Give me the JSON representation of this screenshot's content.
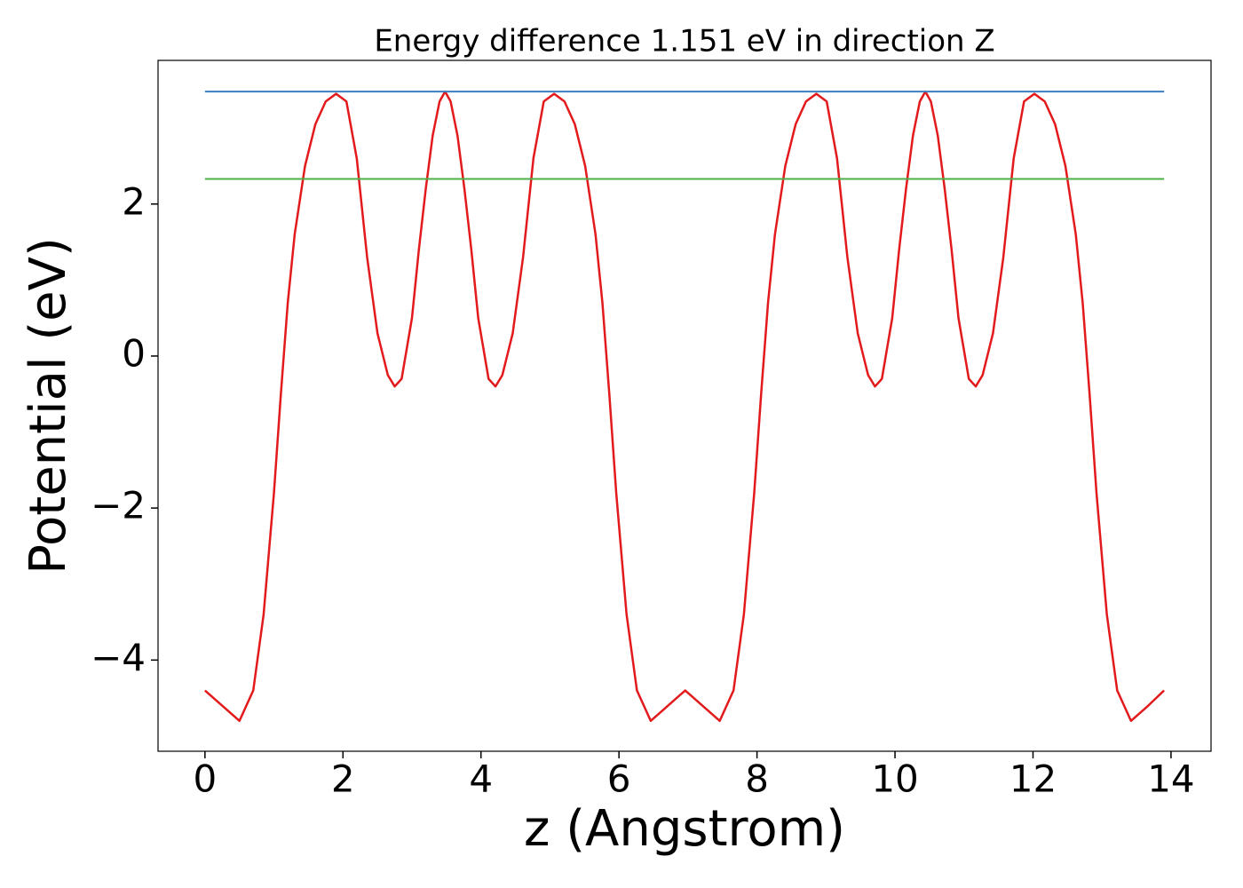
{
  "chart_data": {
    "type": "line",
    "title": "Energy difference 1.151 eV in direction Z",
    "xlabel": "z (Angstrom)",
    "ylabel": "Potential (eV)",
    "xlim": [
      -0.68,
      14.58
    ],
    "ylim": [
      -5.2,
      3.89
    ],
    "xticks": [
      0,
      2,
      4,
      6,
      8,
      10,
      12,
      14
    ],
    "yticks": [
      {
        "value": -4,
        "label": "−4"
      },
      {
        "value": -2,
        "label": "−2"
      },
      0,
      2
    ],
    "grid": false,
    "series": [
      {
        "color": "#e31a1c",
        "x": [
          0,
          0.25,
          0.5,
          0.7,
          0.85,
          1.0,
          1.1,
          1.2,
          1.3,
          1.45,
          1.6,
          1.75,
          1.9,
          2.05,
          2.2,
          2.35,
          2.5,
          2.65,
          2.75,
          2.85,
          3.0,
          3.1,
          3.2,
          3.3,
          3.4,
          3.48,
          3.56,
          3.66,
          3.76,
          3.86,
          3.96,
          4.11,
          4.21,
          4.31,
          4.46,
          4.61,
          4.76,
          4.91,
          5.06,
          5.21,
          5.36,
          5.51,
          5.66,
          5.76,
          5.86,
          5.96,
          6.11,
          6.26,
          6.46,
          6.71,
          6.96,
          7.21,
          7.46,
          7.66,
          7.81,
          7.96,
          8.06,
          8.16,
          8.26,
          8.41,
          8.56,
          8.71,
          8.86,
          9.01,
          9.16,
          9.31,
          9.46,
          9.61,
          9.71,
          9.81,
          9.96,
          10.06,
          10.16,
          10.26,
          10.36,
          10.44,
          10.52,
          10.62,
          10.72,
          10.82,
          10.92,
          11.07,
          11.17,
          11.27,
          11.42,
          11.57,
          11.72,
          11.87,
          12.02,
          12.17,
          12.32,
          12.47,
          12.62,
          12.72,
          12.82,
          12.92,
          13.07,
          13.22,
          13.42,
          13.67,
          13.9
        ],
        "values": [
          -4.4,
          -4.6,
          -4.8,
          -4.4,
          -3.4,
          -1.8,
          -0.5,
          0.7,
          1.6,
          2.5,
          3.05,
          3.35,
          3.45,
          3.35,
          2.6,
          1.3,
          0.3,
          -0.25,
          -0.4,
          -0.3,
          0.5,
          1.4,
          2.2,
          2.9,
          3.35,
          3.48,
          3.35,
          2.9,
          2.2,
          1.4,
          0.5,
          -0.3,
          -0.4,
          -0.25,
          0.3,
          1.3,
          2.6,
          3.35,
          3.45,
          3.35,
          3.05,
          2.5,
          1.6,
          0.7,
          -0.5,
          -1.8,
          -3.4,
          -4.4,
          -4.8,
          -4.6,
          -4.4,
          -4.6,
          -4.8,
          -4.4,
          -3.4,
          -1.8,
          -0.5,
          0.7,
          1.6,
          2.5,
          3.05,
          3.35,
          3.45,
          3.35,
          2.6,
          1.3,
          0.3,
          -0.25,
          -0.4,
          -0.3,
          0.5,
          1.4,
          2.2,
          2.9,
          3.35,
          3.48,
          3.35,
          2.9,
          2.2,
          1.4,
          0.5,
          -0.3,
          -0.4,
          -0.25,
          0.3,
          1.3,
          2.6,
          3.35,
          3.45,
          3.35,
          3.05,
          2.5,
          1.6,
          0.7,
          -0.5,
          -1.8,
          -3.4,
          -4.4,
          -4.8,
          -4.6,
          -4.4
        ]
      },
      {
        "color": "#3a7fc1",
        "x": [
          0,
          13.9
        ],
        "values": [
          3.48,
          3.48
        ]
      },
      {
        "color": "#4daf4a",
        "x": [
          0,
          13.9
        ],
        "values": [
          2.33,
          2.33
        ]
      }
    ]
  }
}
